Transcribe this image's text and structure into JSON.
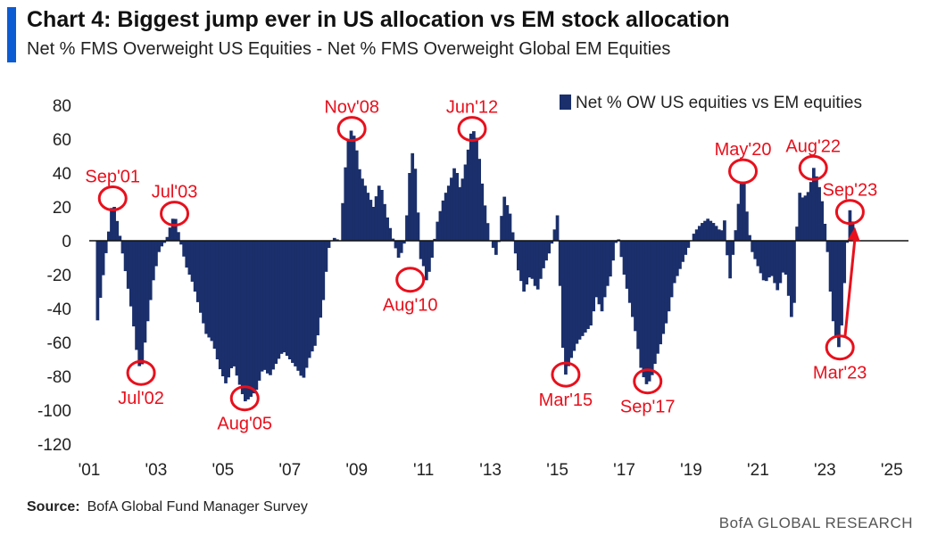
{
  "header": {
    "title": "Chart 4: Biggest jump ever in US allocation vs EM stock allocation",
    "subtitle": "Net % FMS Overweight US Equities - Net % FMS Overweight Global EM Equities"
  },
  "source": {
    "label": "Source:",
    "text": "BofA Global Fund Manager Survey"
  },
  "footer": {
    "brand": "BofA GLOBAL RESEARCH"
  },
  "colors": {
    "bar": "#1a2f6b",
    "annotation": "#e8101c",
    "zero_line": "#111111"
  },
  "chart_data": {
    "type": "bar",
    "series_name": "Net % OW US equities vs EM equities",
    "ylim": [
      -120,
      80
    ],
    "yticks": [
      80,
      60,
      40,
      20,
      0,
      -20,
      -40,
      -60,
      -80,
      -100,
      -120
    ],
    "xlim": [
      2001.0,
      2025.5
    ],
    "xticks": [
      {
        "year": 2001,
        "label": "'01"
      },
      {
        "year": 2003,
        "label": "'03"
      },
      {
        "year": 2005,
        "label": "'05"
      },
      {
        "year": 2007,
        "label": "'07"
      },
      {
        "year": 2009,
        "label": "'09"
      },
      {
        "year": 2011,
        "label": "'11"
      },
      {
        "year": 2013,
        "label": "'13"
      },
      {
        "year": 2015,
        "label": "'15"
      },
      {
        "year": 2017,
        "label": "'17"
      },
      {
        "year": 2019,
        "label": "'19"
      },
      {
        "year": 2021,
        "label": "'21"
      },
      {
        "year": 2023,
        "label": "'23"
      },
      {
        "year": 2025,
        "label": "'25"
      }
    ],
    "anchors": [
      [
        2001.25,
        -47
      ],
      [
        2001.45,
        -15
      ],
      [
        2001.6,
        8
      ],
      [
        2001.7,
        25
      ],
      [
        2001.9,
        5
      ],
      [
        2002.1,
        -20
      ],
      [
        2002.3,
        -45
      ],
      [
        2002.45,
        -70
      ],
      [
        2002.55,
        -78
      ],
      [
        2002.7,
        -55
      ],
      [
        2002.9,
        -25
      ],
      [
        2003.1,
        -5
      ],
      [
        2003.3,
        0
      ],
      [
        2003.45,
        10
      ],
      [
        2003.55,
        16
      ],
      [
        2003.7,
        2
      ],
      [
        2003.9,
        -15
      ],
      [
        2004.1,
        -25
      ],
      [
        2004.3,
        -40
      ],
      [
        2004.5,
        -55
      ],
      [
        2004.7,
        -60
      ],
      [
        2004.9,
        -75
      ],
      [
        2005.1,
        -85
      ],
      [
        2005.3,
        -72
      ],
      [
        2005.5,
        -85
      ],
      [
        2005.65,
        -95
      ],
      [
        2005.8,
        -93
      ],
      [
        2006.0,
        -88
      ],
      [
        2006.2,
        -75
      ],
      [
        2006.4,
        -80
      ],
      [
        2006.6,
        -72
      ],
      [
        2006.8,
        -65
      ],
      [
        2007.0,
        -70
      ],
      [
        2007.2,
        -75
      ],
      [
        2007.4,
        -82
      ],
      [
        2007.6,
        -68
      ],
      [
        2007.8,
        -60
      ],
      [
        2008.0,
        -35
      ],
      [
        2008.15,
        -5
      ],
      [
        2008.3,
        2
      ],
      [
        2008.5,
        0
      ],
      [
        2008.65,
        40
      ],
      [
        2008.75,
        60
      ],
      [
        2008.85,
        66
      ],
      [
        2008.95,
        60
      ],
      [
        2009.1,
        40
      ],
      [
        2009.3,
        30
      ],
      [
        2009.5,
        20
      ],
      [
        2009.7,
        35
      ],
      [
        2009.9,
        15
      ],
      [
        2010.1,
        0
      ],
      [
        2010.25,
        -10
      ],
      [
        2010.4,
        -5
      ],
      [
        2010.5,
        15
      ],
      [
        2010.6,
        45
      ],
      [
        2010.7,
        55
      ],
      [
        2010.8,
        30
      ],
      [
        2010.9,
        -10
      ],
      [
        2011.0,
        -15
      ],
      [
        2011.1,
        -25
      ],
      [
        2011.25,
        -10
      ],
      [
        2011.4,
        10
      ],
      [
        2011.6,
        25
      ],
      [
        2011.8,
        35
      ],
      [
        2011.95,
        45
      ],
      [
        2012.1,
        30
      ],
      [
        2012.3,
        50
      ],
      [
        2012.45,
        67
      ],
      [
        2012.6,
        60
      ],
      [
        2012.8,
        25
      ],
      [
        2013.0,
        0
      ],
      [
        2013.2,
        -10
      ],
      [
        2013.4,
        27
      ],
      [
        2013.6,
        15
      ],
      [
        2013.8,
        -15
      ],
      [
        2014.0,
        -30
      ],
      [
        2014.2,
        -20
      ],
      [
        2014.4,
        -30
      ],
      [
        2014.6,
        -15
      ],
      [
        2014.8,
        -5
      ],
      [
        2015.0,
        15
      ],
      [
        2015.15,
        -60
      ],
      [
        2015.25,
        -79
      ],
      [
        2015.4,
        -70
      ],
      [
        2015.6,
        -60
      ],
      [
        2015.8,
        -55
      ],
      [
        2016.0,
        -50
      ],
      [
        2016.2,
        -30
      ],
      [
        2016.3,
        -45
      ],
      [
        2016.45,
        -30
      ],
      [
        2016.6,
        -20
      ],
      [
        2016.8,
        5
      ],
      [
        2017.0,
        -20
      ],
      [
        2017.2,
        -40
      ],
      [
        2017.35,
        -55
      ],
      [
        2017.5,
        -75
      ],
      [
        2017.65,
        -85
      ],
      [
        2017.8,
        -82
      ],
      [
        2017.95,
        -70
      ],
      [
        2018.1,
        -60
      ],
      [
        2018.3,
        -45
      ],
      [
        2018.5,
        -25
      ],
      [
        2018.7,
        -15
      ],
      [
        2018.9,
        -5
      ],
      [
        2019.1,
        5
      ],
      [
        2019.3,
        10
      ],
      [
        2019.5,
        13
      ],
      [
        2019.7,
        10
      ],
      [
        2019.9,
        5
      ],
      [
        2020.0,
        12
      ],
      [
        2020.15,
        -25
      ],
      [
        2020.3,
        0
      ],
      [
        2020.45,
        28
      ],
      [
        2020.55,
        42
      ],
      [
        2020.65,
        20
      ],
      [
        2020.8,
        -5
      ],
      [
        2021.0,
        -15
      ],
      [
        2021.2,
        -25
      ],
      [
        2021.4,
        -20
      ],
      [
        2021.6,
        -30
      ],
      [
        2021.8,
        -15
      ],
      [
        2022.0,
        -45
      ],
      [
        2022.1,
        -35
      ],
      [
        2022.2,
        30
      ],
      [
        2022.35,
        25
      ],
      [
        2022.55,
        30
      ],
      [
        2022.65,
        44
      ],
      [
        2022.8,
        35
      ],
      [
        2022.95,
        20
      ],
      [
        2023.1,
        -10
      ],
      [
        2023.2,
        -40
      ],
      [
        2023.3,
        -55
      ],
      [
        2023.45,
        -65
      ],
      [
        2023.55,
        -35
      ],
      [
        2023.65,
        -5
      ],
      [
        2023.75,
        18
      ],
      [
        2023.85,
        10
      ]
    ],
    "annotations": [
      {
        "label": "Sep'01",
        "x": 2001.7,
        "y": 25,
        "label_pos": "above"
      },
      {
        "label": "Jul'02",
        "x": 2002.55,
        "y": -78,
        "label_pos": "below"
      },
      {
        "label": "Jul'03",
        "x": 2003.55,
        "y": 16,
        "label_pos": "above"
      },
      {
        "label": "Aug'05",
        "x": 2005.65,
        "y": -93,
        "label_pos": "below"
      },
      {
        "label": "Nov'08",
        "x": 2008.85,
        "y": 66,
        "label_pos": "above"
      },
      {
        "label": "Aug'10",
        "x": 2010.6,
        "y": -23,
        "label_pos": "below"
      },
      {
        "label": "Jun'12",
        "x": 2012.45,
        "y": 66,
        "label_pos": "above"
      },
      {
        "label": "Mar'15",
        "x": 2015.25,
        "y": -79,
        "label_pos": "below"
      },
      {
        "label": "Sep'17",
        "x": 2017.7,
        "y": -83,
        "label_pos": "below"
      },
      {
        "label": "May'20",
        "x": 2020.55,
        "y": 41,
        "label_pos": "above"
      },
      {
        "label": "Aug'22",
        "x": 2022.65,
        "y": 43,
        "label_pos": "above"
      },
      {
        "label": "Mar'23",
        "x": 2023.45,
        "y": -63,
        "label_pos": "below"
      },
      {
        "label": "Sep'23",
        "x": 2023.75,
        "y": 17,
        "label_pos": "above"
      }
    ],
    "arrow": {
      "from": [
        2023.6,
        -57
      ],
      "to": [
        2023.9,
        8
      ]
    }
  }
}
